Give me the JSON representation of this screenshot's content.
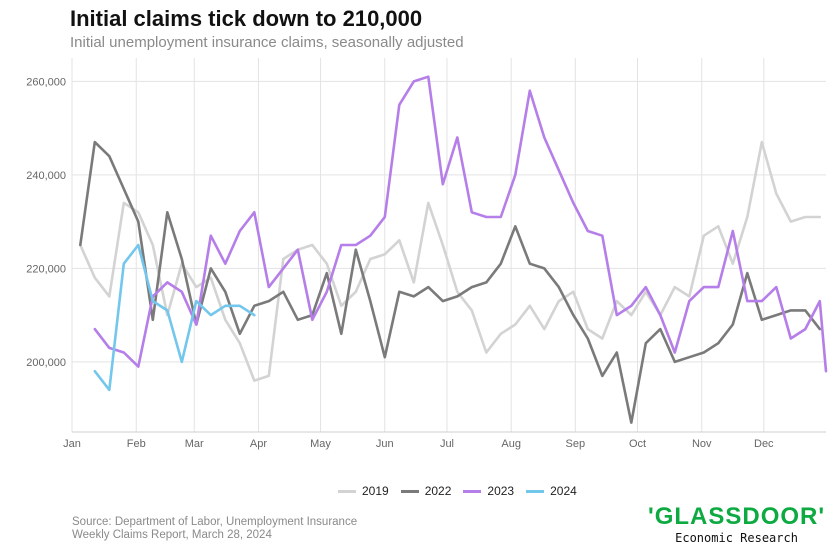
{
  "header": {
    "title": "Initial claims tick down to 210,000",
    "subtitle": "Initial unemployment insurance claims, seasonally adjusted"
  },
  "source_lines": [
    "Source: Department of Labor, Unemployment Insurance",
    "Weekly Claims Report, March 28, 2024"
  ],
  "logo": {
    "word": "'GLASSDOOR'",
    "sub": "Economic Research"
  },
  "colors": {
    "2019": "#d3d3d3",
    "2022": "#7a7a7a",
    "2023": "#b57ee8",
    "2024": "#74c7ec",
    "grid": "#e3e3e3",
    "axis_text": "#666666",
    "brand": "#0caa41"
  },
  "chart_data": {
    "type": "line",
    "title": "Initial claims tick down to 210,000",
    "subtitle": "Initial unemployment insurance claims, seasonally adjusted",
    "xlabel": "",
    "ylabel": "",
    "x_unit": "week of year",
    "x_ticks": [
      {
        "label": "Jan",
        "x": 0
      },
      {
        "label": "Feb",
        "x": 4.43
      },
      {
        "label": "Mar",
        "x": 8.43
      },
      {
        "label": "Apr",
        "x": 12.86
      },
      {
        "label": "May",
        "x": 17.14
      },
      {
        "label": "Jun",
        "x": 21.57
      },
      {
        "label": "Jul",
        "x": 25.86
      },
      {
        "label": "Aug",
        "x": 30.29
      },
      {
        "label": "Sep",
        "x": 34.71
      },
      {
        "label": "Oct",
        "x": 39.0
      },
      {
        "label": "Nov",
        "x": 43.43
      },
      {
        "label": "Dec",
        "x": 47.71
      }
    ],
    "xlim": [
      0,
      52
    ],
    "ylim": [
      185000,
      265000
    ],
    "y_ticks": [
      200000,
      220000,
      240000,
      260000
    ],
    "y_tick_labels": [
      "200,000",
      "220,000",
      "240,000",
      "260,000"
    ],
    "grid": true,
    "legend_position": "bottom",
    "series": [
      {
        "name": "2019",
        "x": [
          0.57,
          1.57,
          2.57,
          3.57,
          4.57,
          5.57,
          6.57,
          7.57,
          8.57,
          9.57,
          10.57,
          11.57,
          12.57,
          13.57,
          14.57,
          15.57,
          16.57,
          17.57,
          18.57,
          19.57,
          20.57,
          21.57,
          22.57,
          23.57,
          24.57,
          25.57,
          26.57,
          27.57,
          28.57,
          29.57,
          30.57,
          31.57,
          32.57,
          33.57,
          34.57,
          35.57,
          36.57,
          37.57,
          38.57,
          39.57,
          40.57,
          41.57,
          42.57,
          43.57,
          44.57,
          45.57,
          46.57,
          47.57,
          48.57,
          49.57,
          50.57,
          51.57
        ],
        "values": [
          225000,
          218000,
          214000,
          234000,
          232000,
          225000,
          210000,
          221000,
          216000,
          218000,
          209000,
          204000,
          196000,
          197000,
          222000,
          224000,
          225000,
          221000,
          212000,
          215000,
          222000,
          223000,
          226000,
          217000,
          234000,
          225000,
          215000,
          211000,
          202000,
          206000,
          208000,
          212000,
          207000,
          213000,
          215000,
          207000,
          205000,
          213000,
          210000,
          215000,
          210000,
          216000,
          214000,
          227000,
          229000,
          221000,
          231000,
          247000,
          236000,
          230000,
          231000,
          231000
        ]
      },
      {
        "name": "2022",
        "x": [
          0.57,
          1.57,
          2.57,
          3.57,
          4.57,
          5.57,
          6.57,
          7.57,
          8.57,
          9.57,
          10.57,
          11.57,
          12.57,
          13.57,
          14.57,
          15.57,
          16.57,
          17.57,
          18.57,
          19.57,
          20.57,
          21.57,
          22.57,
          23.57,
          24.57,
          25.57,
          26.57,
          27.57,
          28.57,
          29.57,
          30.57,
          31.57,
          32.57,
          33.57,
          34.57,
          35.57,
          36.57,
          37.57,
          38.57,
          39.57,
          40.57,
          41.57,
          42.57,
          43.57,
          44.57,
          45.57,
          46.57,
          47.57,
          48.57,
          49.57,
          50.57,
          51.57
        ],
        "values": [
          225000,
          247000,
          244000,
          237000,
          230000,
          209000,
          232000,
          222000,
          208000,
          220000,
          215000,
          206000,
          212000,
          213000,
          215000,
          209000,
          210000,
          219000,
          206000,
          224000,
          213000,
          201000,
          215000,
          214000,
          216000,
          213000,
          214000,
          216000,
          217000,
          221000,
          229000,
          221000,
          220000,
          216000,
          210000,
          205000,
          197000,
          202000,
          187000,
          204000,
          207000,
          200000,
          201000,
          202000,
          204000,
          208000,
          219000,
          209000,
          210000,
          211000,
          211000,
          207000
        ]
      },
      {
        "name": "2023",
        "x": [
          1.57,
          2.57,
          3.57,
          4.57,
          5.57,
          6.57,
          7.57,
          8.57,
          9.57,
          10.57,
          11.57,
          12.57,
          13.57,
          14.57,
          15.57,
          16.57,
          17.57,
          18.57,
          19.57,
          20.57,
          21.57,
          22.57,
          23.57,
          24.57,
          25.57,
          26.57,
          27.57,
          28.57,
          29.57,
          30.57,
          31.57,
          32.57,
          33.57,
          34.57,
          35.57,
          36.57,
          37.57,
          38.57,
          39.57,
          40.57,
          41.57,
          42.57,
          43.57,
          44.57,
          45.57,
          46.57,
          47.57,
          48.57,
          49.57,
          50.57,
          51.57,
          52.0
        ],
        "values": [
          207000,
          203000,
          202000,
          199000,
          214000,
          217000,
          215000,
          208000,
          227000,
          221000,
          228000,
          232000,
          216000,
          220000,
          224000,
          209000,
          215000,
          225000,
          225000,
          227000,
          231000,
          255000,
          260000,
          261000,
          238000,
          248000,
          232000,
          231000,
          231000,
          240000,
          258000,
          248000,
          241000,
          234000,
          228000,
          227000,
          210000,
          212000,
          216000,
          210000,
          202000,
          213000,
          216000,
          216000,
          228000,
          213000,
          213000,
          216000,
          205000,
          207000,
          213000,
          198000
        ]
      },
      {
        "name": "2024",
        "x": [
          1.57,
          2.57,
          3.57,
          4.57,
          5.57,
          6.57,
          7.57,
          8.57,
          9.57,
          10.57,
          11.57,
          12.57
        ],
        "values": [
          198000,
          194000,
          221000,
          225000,
          213000,
          211000,
          200000,
          213000,
          210000,
          212000,
          212000,
          210000
        ]
      }
    ]
  }
}
